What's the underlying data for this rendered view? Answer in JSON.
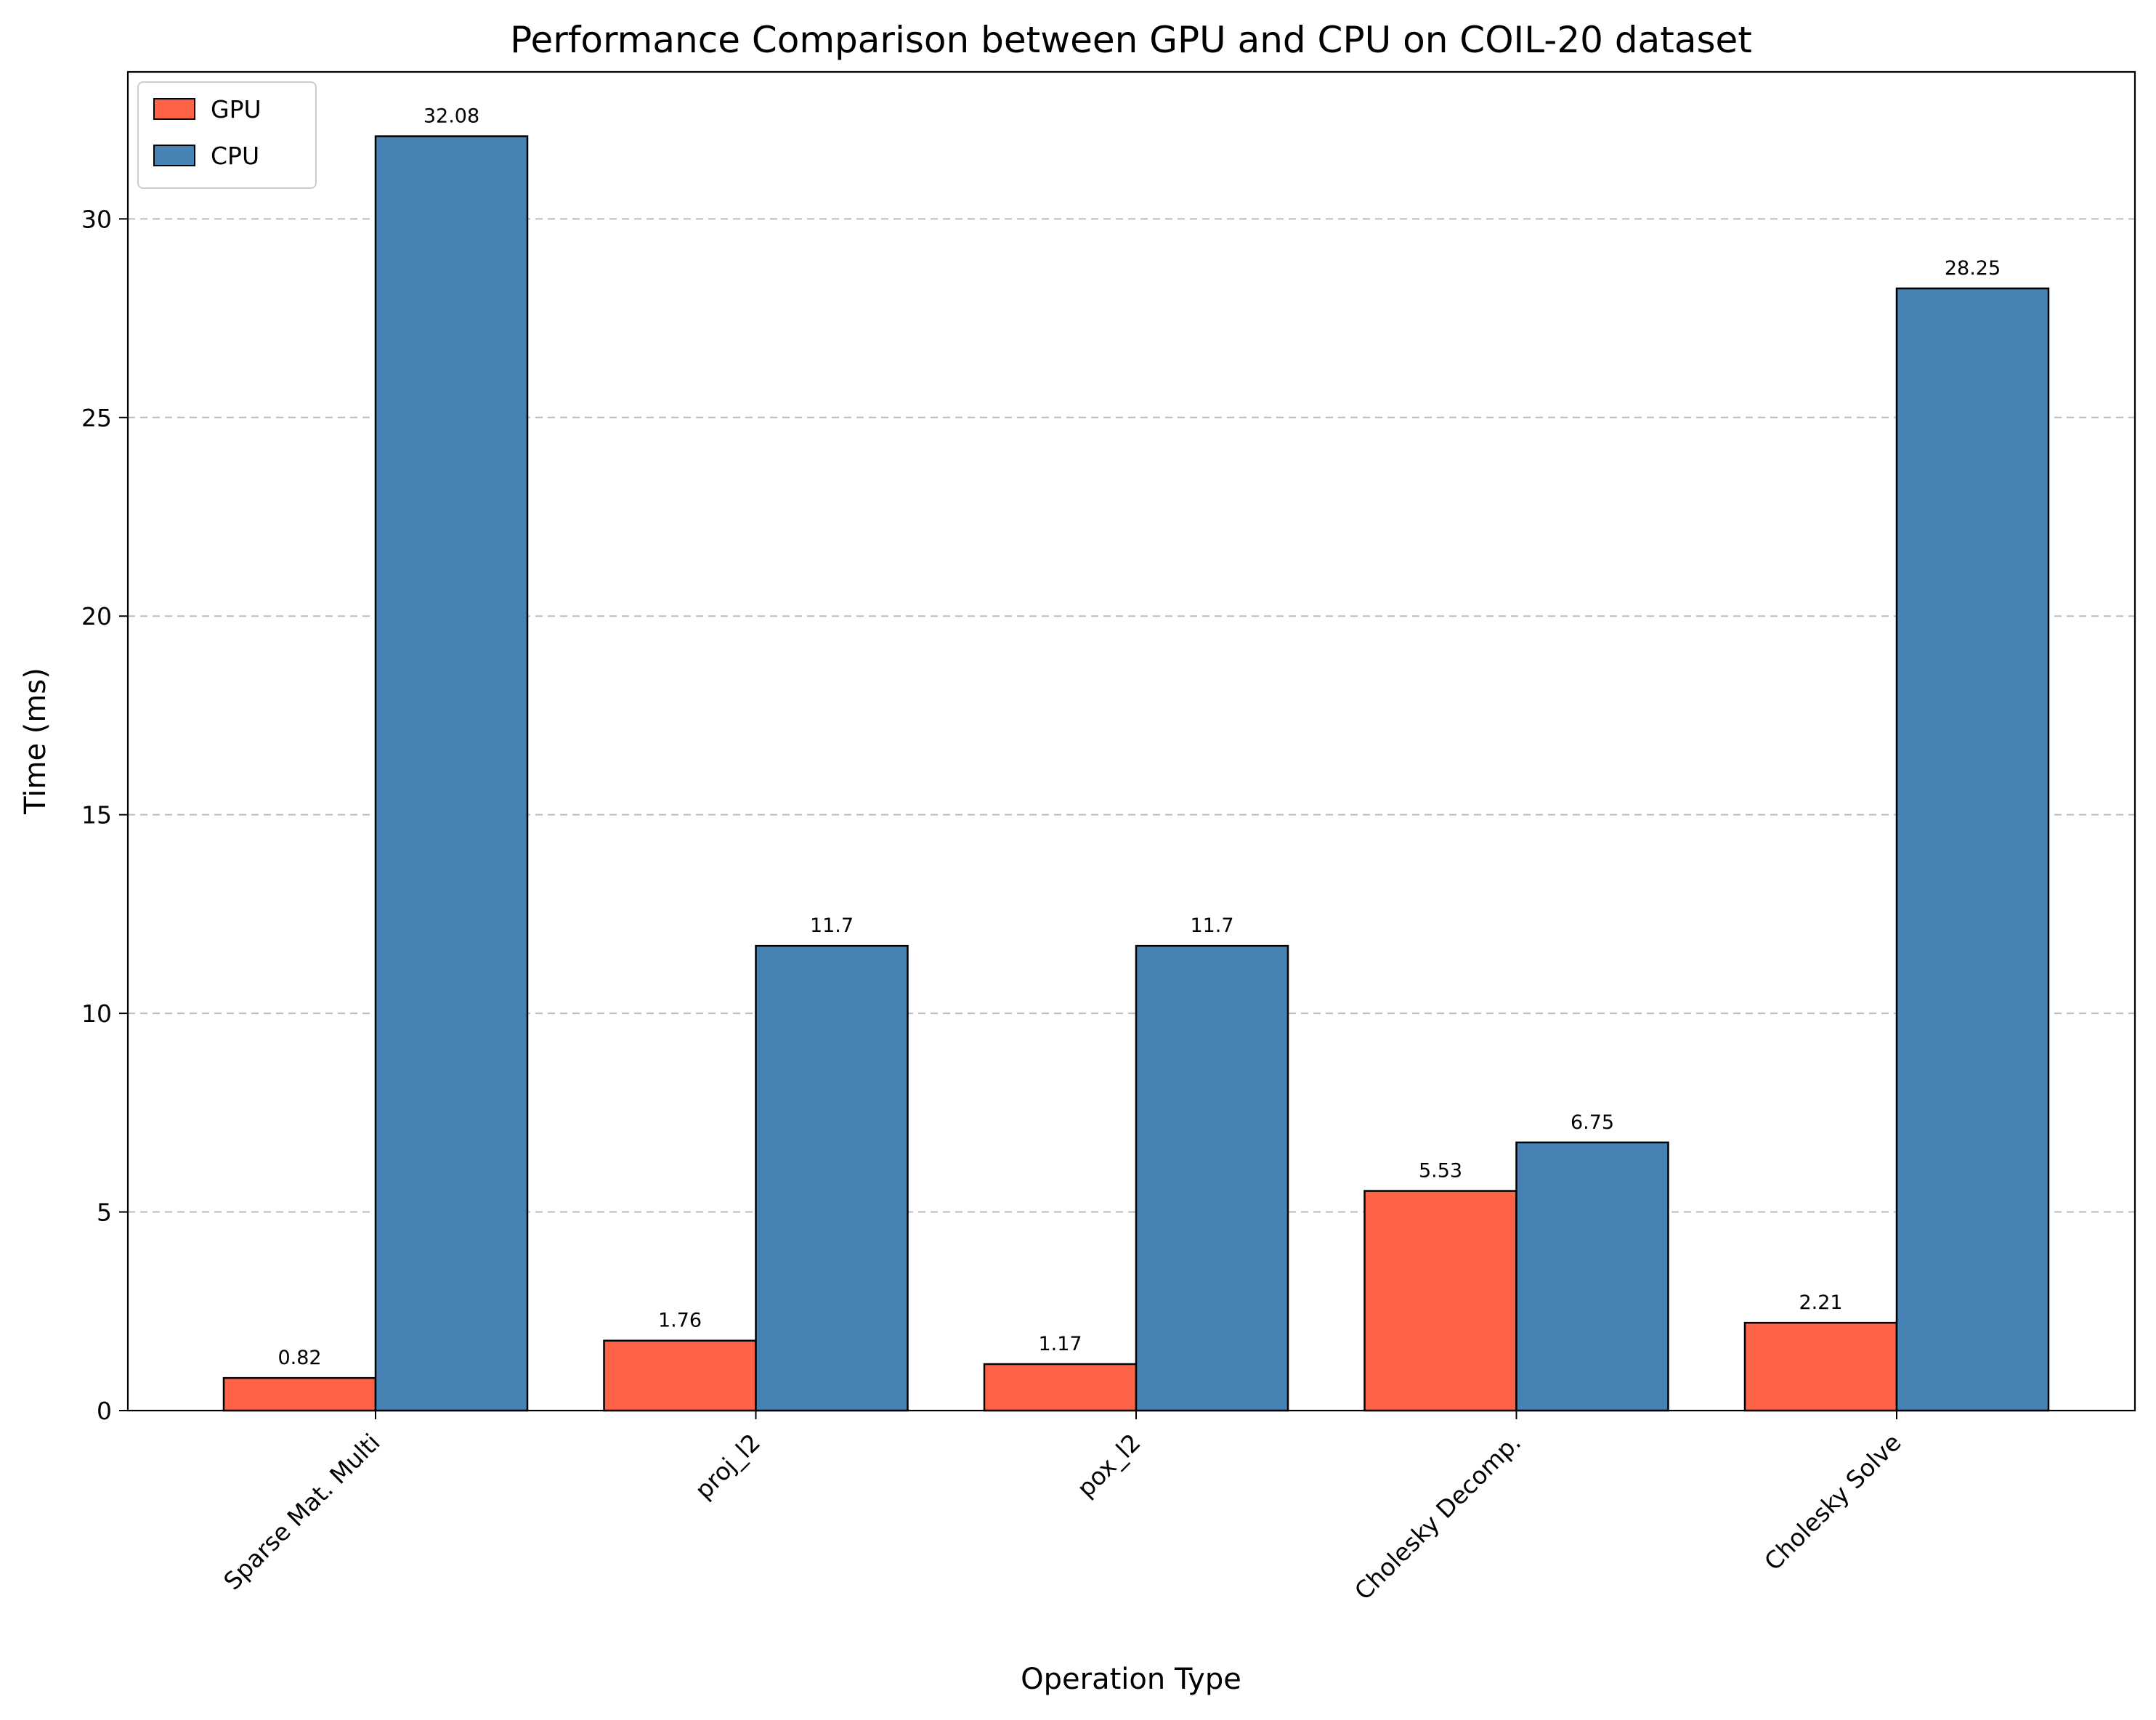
{
  "chart_data": {
    "type": "bar",
    "title": "Performance Comparison between GPU and CPU on COIL-20 dataset",
    "xlabel": "Operation Type",
    "ylabel": "Time (ms)",
    "categories": [
      "Sparse Mat. Multi",
      "proj_l2",
      "pox_l2",
      "Cholesky Decomp.",
      "Cholesky Solve"
    ],
    "series": [
      {
        "name": "GPU",
        "color": "#ff6347",
        "values": [
          0.82,
          1.76,
          1.17,
          5.53,
          2.21
        ],
        "labels": [
          "0.82",
          "1.76",
          "1.17",
          "5.53",
          "2.21"
        ]
      },
      {
        "name": "CPU",
        "color": "#4682b4",
        "values": [
          32.08,
          11.7,
          11.7,
          6.75,
          28.25
        ],
        "labels": [
          "32.08",
          "11.7",
          "11.7",
          "6.75",
          "28.25"
        ]
      }
    ],
    "ylim": [
      0,
      33.7
    ],
    "yticks": [
      0,
      5,
      10,
      15,
      20,
      25,
      30
    ],
    "ytick_labels": [
      "0",
      "5",
      "10",
      "15",
      "20",
      "25",
      "30"
    ],
    "grid": "y-dashed",
    "legend_position": "top-left"
  }
}
